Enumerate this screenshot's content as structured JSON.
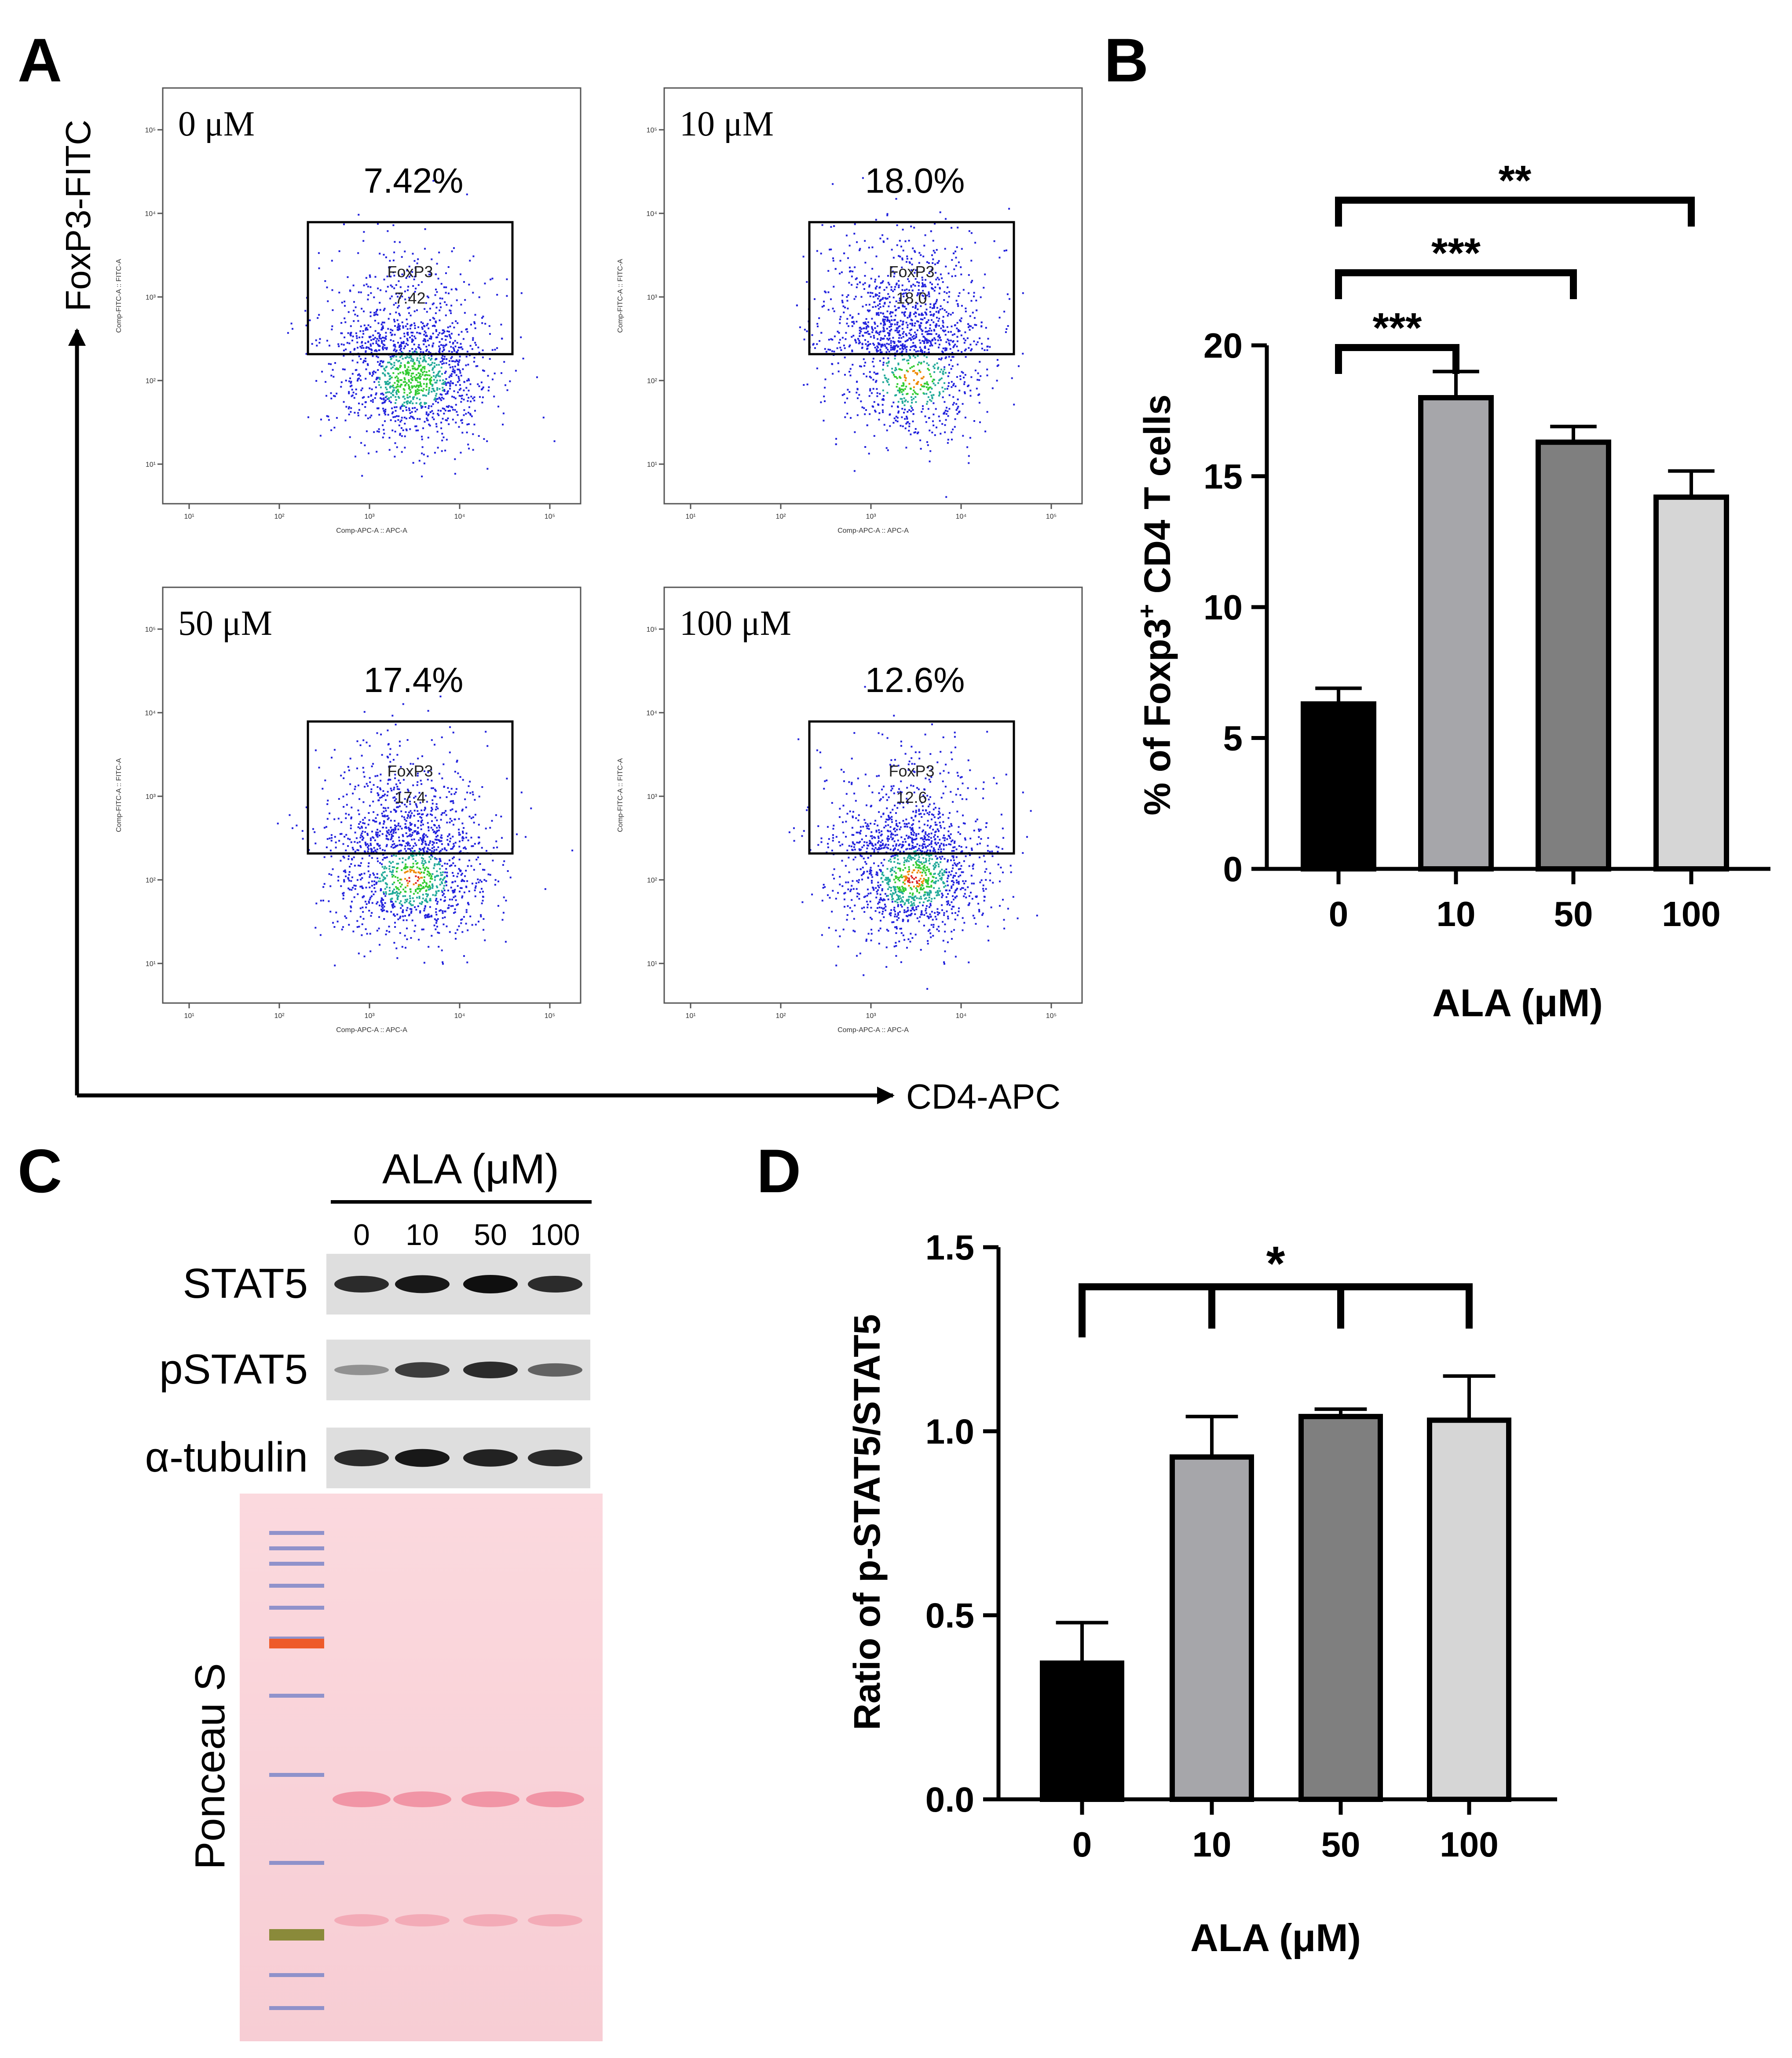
{
  "panel_labels": {
    "a": "A",
    "b": "B",
    "c": "C",
    "d": "D"
  },
  "panel_a": {
    "y_axis_label": "FoxP3-FITC",
    "x_axis_label": "CD4-APC",
    "plot_y_param": "Comp-FITC-A :: FITC-A",
    "plot_x_param": "Comp-APC-A :: APC-A",
    "gate_name": "FoxP3",
    "tick_labels": [
      "10¹",
      "10²",
      "10³",
      "10⁴",
      "10⁵"
    ],
    "plots": [
      {
        "concentration": "0 μM",
        "percent": "7.42%",
        "gate_value": "7.42"
      },
      {
        "concentration": "10 μM",
        "percent": "18.0%",
        "gate_value": "18.0"
      },
      {
        "concentration": "50 μM",
        "percent": "17.4%",
        "gate_value": "17.4"
      },
      {
        "concentration": "100 μM",
        "percent": "12.6%",
        "gate_value": "12.6"
      }
    ]
  },
  "panel_c": {
    "title": "ALA (μM)",
    "lanes": [
      "0",
      "10",
      "50",
      "100"
    ],
    "blots": [
      {
        "label": "STAT5",
        "intensity": [
          0.85,
          0.95,
          1.0,
          0.85
        ]
      },
      {
        "label": "pSTAT5",
        "intensity": [
          0.3,
          0.75,
          0.85,
          0.55
        ]
      },
      {
        "label": "α-tubulin",
        "intensity": [
          0.85,
          0.95,
          0.9,
          0.85
        ]
      }
    ],
    "stain_label": "Ponceau S"
  },
  "colors": {
    "bar0": "#000000",
    "bar1": "#a6a6aa",
    "bar2": "#7f7f7f",
    "bar3": "#d6d6d6"
  },
  "chart_data": [
    {
      "type": "bar",
      "panel": "B",
      "categories": [
        "0",
        "10",
        "50",
        "100"
      ],
      "values": [
        6.3,
        18.0,
        16.3,
        14.2
      ],
      "errors": [
        0.6,
        1.0,
        0.6,
        1.0
      ],
      "xlabel": "ALA (μM)",
      "ylabel_prefix": "% of Foxp3",
      "ylabel_sup": "+",
      "ylabel_suffix": " CD4 T cells",
      "ylim": [
        0,
        20
      ],
      "yticks": [
        "0",
        "5",
        "10",
        "15",
        "20"
      ],
      "significance": [
        {
          "from": "0",
          "to": "10",
          "label": "***"
        },
        {
          "from": "0",
          "to": "50",
          "label": "***"
        },
        {
          "from": "0",
          "to": "100",
          "label": "**"
        }
      ]
    },
    {
      "type": "bar",
      "panel": "D",
      "categories": [
        "0",
        "10",
        "50",
        "100"
      ],
      "values": [
        0.37,
        0.93,
        1.04,
        1.03
      ],
      "errors": [
        0.11,
        0.11,
        0.02,
        0.12
      ],
      "xlabel": "ALA (μM)",
      "ylabel": "Ratio of p-STAT5/STAT5",
      "ylim": [
        0,
        1.5
      ],
      "yticks": [
        "0.0",
        "0.5",
        "1.0",
        "1.5"
      ],
      "significance": [
        {
          "from": "0",
          "to": [
            "10",
            "50",
            "100"
          ],
          "label": "*"
        }
      ]
    }
  ]
}
